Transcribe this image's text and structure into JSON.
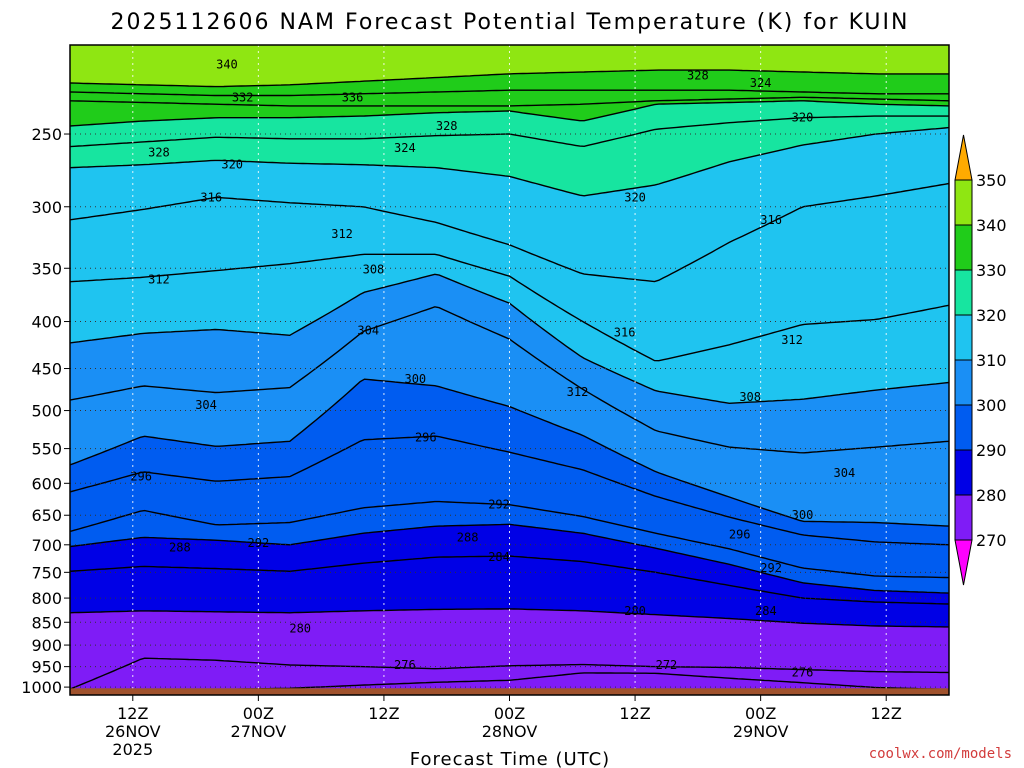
{
  "chart_data": {
    "type": "filled-contour",
    "title": "2025112606 NAM Forecast Potential Temperature (K) for KUIN",
    "xlabel": "Forecast Time (UTC)",
    "ylabel": "",
    "credit": "coolwx.com/models",
    "y_ticks": [
      "250",
      "300",
      "350",
      "400",
      "450",
      "500",
      "550",
      "600",
      "650",
      "700",
      "750",
      "800",
      "850",
      "900",
      "950",
      "1000"
    ],
    "y_tick_values": [
      250,
      300,
      350,
      400,
      450,
      500,
      550,
      600,
      650,
      700,
      750,
      800,
      850,
      900,
      950,
      1000
    ],
    "x_tick_labels": [
      {
        "hour": "12Z",
        "date": "26NOV",
        "year": "2025",
        "t": 6
      },
      {
        "hour": "00Z",
        "date": "27NOV",
        "year": "",
        "t": 18
      },
      {
        "hour": "12Z",
        "date": "",
        "year": "",
        "t": 30
      },
      {
        "hour": "00Z",
        "date": "28NOV",
        "year": "",
        "t": 42
      },
      {
        "hour": "12Z",
        "date": "",
        "year": "",
        "t": 54
      },
      {
        "hour": "00Z",
        "date": "29NOV",
        "year": "",
        "t": 66
      },
      {
        "hour": "12Z",
        "date": "",
        "year": "",
        "t": 78
      }
    ],
    "x_range_hours": [
      0,
      84
    ],
    "p_range_hpa": [
      200,
      1020
    ],
    "colorbar": {
      "labels": [
        "350",
        "340",
        "330",
        "320",
        "310",
        "300",
        "290",
        "280",
        "270"
      ],
      "levels": [
        270,
        280,
        290,
        300,
        310,
        320,
        330,
        340,
        350
      ],
      "colors": [
        "#ff00ff",
        "#b200f0",
        "#7f1cf6",
        "#0000e6",
        "#005cf0",
        "#1a8ff5",
        "#1fc4f0",
        "#17e5a0",
        "#20cc1a",
        "#8fe612",
        "#ffff00",
        "#ffaa00"
      ]
    },
    "series": [
      {
        "name": "340",
        "values": [
          220,
          221,
          222,
          221,
          219,
          217,
          215,
          214,
          213,
          213,
          214,
          215,
          215
        ]
      },
      {
        "name": "336",
        "values": [
          225,
          226,
          227,
          227,
          226,
          225,
          224,
          224,
          224,
          224,
          225,
          226,
          226
        ]
      },
      {
        "name": "332",
        "values": [
          230,
          231,
          232,
          233,
          233,
          233,
          233,
          232,
          230,
          229,
          228,
          229,
          230
        ]
      },
      {
        "name": "328",
        "values": [
          245,
          242,
          240,
          240,
          239,
          237,
          236,
          242,
          232,
          231,
          230,
          232,
          233
        ]
      },
      {
        "name": "324",
        "values": [
          258,
          255,
          252,
          253,
          253,
          251,
          250,
          258,
          247,
          243,
          240,
          239,
          239
        ]
      },
      {
        "name": "320",
        "values": [
          272,
          270,
          267,
          269,
          270,
          272,
          278,
          292,
          284,
          268,
          257,
          250,
          246
        ]
      },
      {
        "name": "316",
        "values": [
          310,
          302,
          293,
          297,
          300,
          312,
          330,
          355,
          362,
          328,
          300,
          292,
          283
        ]
      },
      {
        "name": "312",
        "values": [
          362,
          358,
          352,
          346,
          338,
          338,
          357,
          400,
          442,
          424,
          403,
          398,
          384
        ]
      },
      {
        "name": "308",
        "values": [
          422,
          412,
          408,
          414,
          372,
          355,
          382,
          438,
          476,
          491,
          486,
          475,
          466
        ]
      },
      {
        "name": "304",
        "values": [
          487,
          470,
          478,
          472,
          410,
          385,
          418,
          474,
          526,
          548,
          556,
          548,
          540
        ]
      },
      {
        "name": "300",
        "values": [
          573,
          533,
          547,
          540,
          462,
          470,
          495,
          532,
          583,
          621,
          660,
          662,
          668
        ]
      },
      {
        "name": "296",
        "values": [
          613,
          583,
          597,
          590,
          538,
          533,
          555,
          580,
          620,
          653,
          683,
          695,
          700
        ]
      },
      {
        "name": "292",
        "values": [
          677,
          642,
          666,
          662,
          638,
          628,
          633,
          652,
          680,
          707,
          742,
          757,
          760
        ]
      },
      {
        "name": "288",
        "values": [
          703,
          687,
          692,
          700,
          680,
          668,
          665,
          680,
          706,
          735,
          770,
          785,
          790
        ]
      },
      {
        "name": "284",
        "values": [
          748,
          739,
          743,
          748,
          733,
          722,
          720,
          730,
          750,
          775,
          800,
          808,
          812
        ]
      },
      {
        "name": "280",
        "values": [
          830,
          826,
          828,
          830,
          826,
          823,
          822,
          826,
          834,
          842,
          852,
          858,
          860
        ]
      },
      {
        "name": "276",
        "values": [
          1005,
          930,
          935,
          946,
          950,
          955,
          948,
          945,
          950,
          952,
          957,
          962,
          964
        ]
      },
      {
        "name": "272",
        "values": [
          1006,
          1006,
          1006,
          1003,
          995,
          988,
          983,
          965,
          966,
          978,
          989,
          1001,
          1006
        ]
      }
    ],
    "series_times": [
      0,
      7,
      14,
      21,
      28,
      35,
      42,
      49,
      56,
      63,
      70,
      77,
      84
    ],
    "contour_labels": [
      {
        "text": "340",
        "t": 15.0,
        "p": 210
      },
      {
        "text": "336",
        "t": 27.0,
        "p": 228
      },
      {
        "text": "332",
        "t": 16.5,
        "p": 228
      },
      {
        "text": "328",
        "t": 8.5,
        "p": 262
      },
      {
        "text": "328",
        "t": 36.0,
        "p": 245
      },
      {
        "text": "328",
        "t": 60.0,
        "p": 216
      },
      {
        "text": "324",
        "t": 32.0,
        "p": 259
      },
      {
        "text": "324",
        "t": 66.0,
        "p": 220
      },
      {
        "text": "320",
        "t": 15.5,
        "p": 270
      },
      {
        "text": "320",
        "t": 54.0,
        "p": 293
      },
      {
        "text": "320",
        "t": 70.0,
        "p": 240
      },
      {
        "text": "316",
        "t": 13.5,
        "p": 293
      },
      {
        "text": "316",
        "t": 67.0,
        "p": 310
      },
      {
        "text": "316",
        "t": 53.0,
        "p": 411
      },
      {
        "text": "312",
        "t": 26.0,
        "p": 321
      },
      {
        "text": "312",
        "t": 8.5,
        "p": 360
      },
      {
        "text": "312",
        "t": 69.0,
        "p": 419
      },
      {
        "text": "312",
        "t": 48.5,
        "p": 477
      },
      {
        "text": "308",
        "t": 29.0,
        "p": 351
      },
      {
        "text": "308",
        "t": 65.0,
        "p": 483
      },
      {
        "text": "304",
        "t": 28.5,
        "p": 409
      },
      {
        "text": "304",
        "t": 13.0,
        "p": 493
      },
      {
        "text": "304",
        "t": 74.0,
        "p": 585
      },
      {
        "text": "300",
        "t": 33.0,
        "p": 462
      },
      {
        "text": "300",
        "t": 70.0,
        "p": 650
      },
      {
        "text": "296",
        "t": 6.8,
        "p": 590
      },
      {
        "text": "296",
        "t": 34.0,
        "p": 535
      },
      {
        "text": "296",
        "t": 64.0,
        "p": 682
      },
      {
        "text": "292",
        "t": 18.0,
        "p": 697
      },
      {
        "text": "292",
        "t": 41.0,
        "p": 633
      },
      {
        "text": "292",
        "t": 67.0,
        "p": 742
      },
      {
        "text": "288",
        "t": 10.5,
        "p": 705
      },
      {
        "text": "288",
        "t": 38.0,
        "p": 687
      },
      {
        "text": "284",
        "t": 41.0,
        "p": 722
      },
      {
        "text": "284",
        "t": 66.5,
        "p": 826
      },
      {
        "text": "280",
        "t": 22.0,
        "p": 863
      },
      {
        "text": "280",
        "t": 54.0,
        "p": 826
      },
      {
        "text": "276",
        "t": 32.0,
        "p": 946
      },
      {
        "text": "276",
        "t": 70.0,
        "p": 964
      },
      {
        "text": "272",
        "t": 57.0,
        "p": 946
      }
    ],
    "surface_label": "ground"
  }
}
